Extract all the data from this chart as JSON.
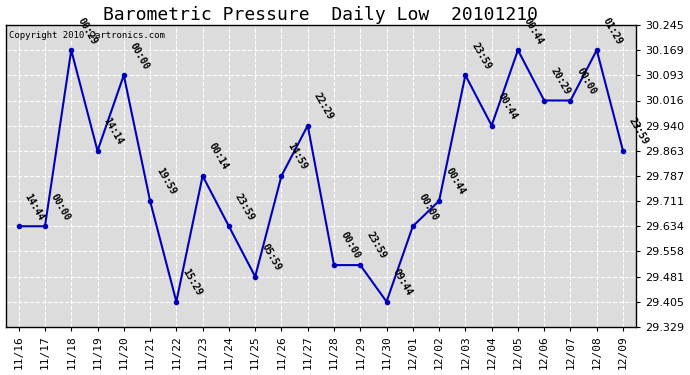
{
  "title": "Barometric Pressure  Daily Low  20101210",
  "copyright": "Copyright 2010 Cartronics.com",
  "x_labels": [
    "11/16",
    "11/17",
    "11/18",
    "11/19",
    "11/20",
    "11/21",
    "11/22",
    "11/23",
    "11/24",
    "11/25",
    "11/26",
    "11/27",
    "11/28",
    "11/29",
    "11/30",
    "12/01",
    "12/02",
    "12/03",
    "12/04",
    "12/05",
    "12/06",
    "12/07",
    "12/08",
    "12/09"
  ],
  "y_values": [
    29.634,
    29.634,
    30.169,
    29.863,
    30.093,
    29.711,
    29.405,
    29.787,
    29.634,
    29.481,
    29.787,
    29.94,
    29.516,
    29.516,
    29.405,
    29.634,
    29.711,
    30.093,
    29.94,
    30.169,
    30.016,
    30.016,
    30.169,
    29.863
  ],
  "time_labels": [
    "14:44",
    "00:00",
    "00:29",
    "14:14",
    "00:00",
    "19:59",
    "15:29",
    "00:14",
    "23:59",
    "05:59",
    "14:59",
    "22:29",
    "00:00",
    "23:59",
    "09:44",
    "00:00",
    "00:44",
    "23:59",
    "00:44",
    "00:44",
    "20:29",
    "00:00",
    "01:29",
    "23:59"
  ],
  "ylim_min": 29.329,
  "ylim_max": 30.245,
  "yticks": [
    29.329,
    29.405,
    29.481,
    29.558,
    29.634,
    29.711,
    29.787,
    29.863,
    29.94,
    30.016,
    30.093,
    30.169,
    30.245
  ],
  "line_color": "#0000BB",
  "marker_color": "#0000BB",
  "bg_color": "#FFFFFF",
  "plot_bg_color": "#DCDCDC",
  "grid_color": "#FFFFFF",
  "title_fontsize": 13,
  "annotation_fontsize": 7,
  "tick_fontsize": 8,
  "figwidth": 6.9,
  "figheight": 3.75,
  "dpi": 100
}
